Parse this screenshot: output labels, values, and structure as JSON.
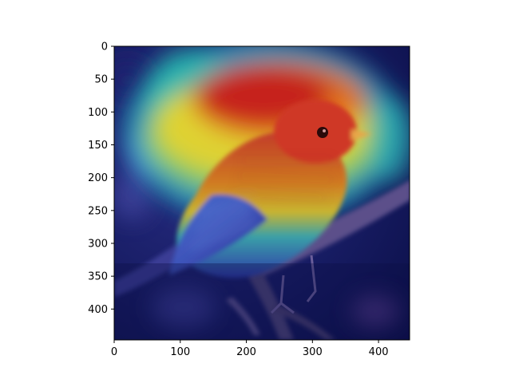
{
  "figure": {
    "kind": "image with heatmap overlay (attention map) on a photo of a small songbird on a branch",
    "colormap": "jet",
    "x_axis": {
      "ticks": [
        0,
        100,
        200,
        300,
        400
      ],
      "range": [
        0,
        447
      ]
    },
    "y_axis": {
      "ticks": [
        0,
        50,
        100,
        150,
        200,
        250,
        300,
        350,
        400
      ],
      "range": [
        0,
        447
      ]
    },
    "image_size": [
      448,
      448
    ]
  }
}
